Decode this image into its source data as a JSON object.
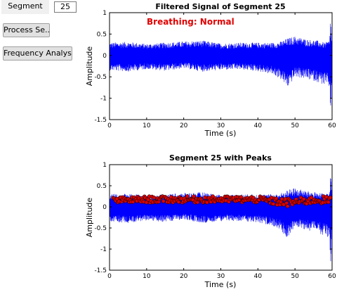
{
  "controls": {
    "segment_label": "Segment",
    "segment_value": "25",
    "process_button": "Process Se...",
    "freq_button": "Frequency Analysis"
  },
  "chart_data": [
    {
      "type": "line",
      "title": "Filtered Signal of Segment 25",
      "xlabel": "Time (s)",
      "ylabel": "Amplitude",
      "xlim": [
        0,
        60
      ],
      "ylim": [
        -1.5,
        1
      ],
      "xticks": [
        0,
        10,
        20,
        30,
        40,
        50,
        60
      ],
      "yticks": [
        -1.5,
        -1,
        -0.5,
        0,
        0.5,
        1
      ],
      "annotation": "Breathing: Normal",
      "series_color": "#0000ff",
      "annotation_color": "#e00000",
      "envelope": {
        "t": [
          0,
          5,
          10,
          15,
          20,
          25,
          30,
          35,
          40,
          44,
          46,
          48,
          50,
          53,
          56,
          58,
          59.3,
          59.6,
          60
        ],
        "upper": [
          0.3,
          0.32,
          0.27,
          0.3,
          0.33,
          0.35,
          0.28,
          0.3,
          0.3,
          0.3,
          0.32,
          0.4,
          0.45,
          0.38,
          0.35,
          0.3,
          0.35,
          0.88,
          0.2
        ],
        "lower": [
          -0.35,
          -0.38,
          -0.32,
          -0.36,
          -0.3,
          -0.38,
          -0.34,
          -0.33,
          -0.37,
          -0.45,
          -0.55,
          -0.75,
          -0.5,
          -0.55,
          -0.62,
          -0.7,
          -0.75,
          -1.45,
          -0.3
        ]
      }
    },
    {
      "type": "line",
      "title": "Segment 25 with Peaks",
      "xlabel": "Time (s)",
      "ylabel": "Amplitude",
      "xlim": [
        0,
        60
      ],
      "ylim": [
        -1.5,
        1
      ],
      "xticks": [
        0,
        10,
        20,
        30,
        40,
        50,
        60
      ],
      "yticks": [
        -1.5,
        -1,
        -0.5,
        0,
        0.5,
        1
      ],
      "series_color": "#0000ff",
      "peak_color": "#dd0000",
      "envelope": {
        "t": [
          0,
          5,
          10,
          15,
          20,
          25,
          30,
          35,
          40,
          44,
          46,
          48,
          50,
          53,
          56,
          58,
          59.3,
          59.6,
          60
        ],
        "upper": [
          0.3,
          0.32,
          0.27,
          0.3,
          0.33,
          0.35,
          0.28,
          0.3,
          0.3,
          0.3,
          0.32,
          0.4,
          0.45,
          0.38,
          0.35,
          0.3,
          0.35,
          0.88,
          0.2
        ],
        "lower": [
          -0.35,
          -0.38,
          -0.32,
          -0.36,
          -0.3,
          -0.38,
          -0.34,
          -0.33,
          -0.37,
          -0.45,
          -0.55,
          -0.75,
          -0.5,
          -0.55,
          -0.62,
          -0.7,
          -0.75,
          -1.45,
          -0.3
        ]
      },
      "peak_band": {
        "t": [
          0,
          10,
          20,
          30,
          40,
          44,
          48,
          52,
          56,
          60
        ],
        "low": [
          0.08,
          0.1,
          0.1,
          0.1,
          0.1,
          0.05,
          0.0,
          0.05,
          0.08,
          0.05
        ],
        "high": [
          0.22,
          0.25,
          0.25,
          0.25,
          0.25,
          0.22,
          0.2,
          0.22,
          0.25,
          0.25
        ]
      }
    }
  ]
}
